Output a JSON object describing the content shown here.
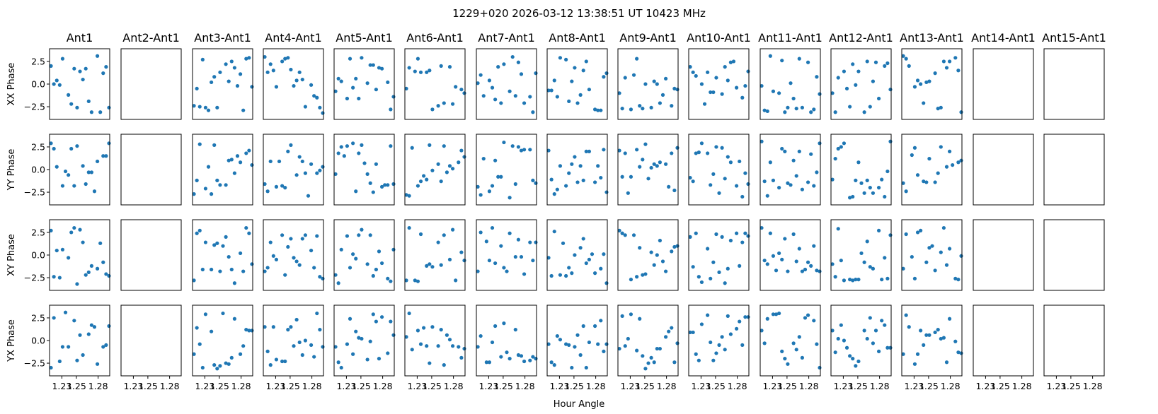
{
  "chart_data": {
    "type": "scatter",
    "title": "1229+020  2026-03-12 13:38:51 UT  10423 MHz",
    "xlabel": "Hour Angle",
    "xlim": [
      1.213,
      1.296
    ],
    "ylim": [
      -3.9,
      3.9
    ],
    "xticks": [
      1.23,
      1.25,
      1.28
    ],
    "xtick_labels": [
      "1.23",
      "1.25",
      "1.28"
    ],
    "yticks": [
      2.5,
      0.0,
      -2.5
    ],
    "ytick_labels": [
      "2.5",
      "0.0",
      "−2.5"
    ],
    "marker_color": "#1f77b4",
    "grid": false,
    "columns": [
      "Ant1",
      "Ant2-Ant1",
      "Ant3-Ant1",
      "Ant4-Ant1",
      "Ant5-Ant1",
      "Ant6-Ant1",
      "Ant7-Ant1",
      "Ant8-Ant1",
      "Ant9-Ant1",
      "Ant10-Ant1",
      "Ant11-Ant1",
      "Ant12-Ant1",
      "Ant13-Ant1",
      "Ant14-Ant1",
      "Ant15-Ant1"
    ],
    "rows": [
      "XX Phase",
      "YY Phase",
      "XY Phase",
      "YX Phase"
    ],
    "empty_columns": [
      "Ant2-Ant1",
      "Ant14-Ant1",
      "Ant15-Ant1"
    ],
    "hour_angle": [
      1.215,
      1.219,
      1.223,
      1.227,
      1.231,
      1.235,
      1.239,
      1.243,
      1.247,
      1.251,
      1.255,
      1.259,
      1.263,
      1.267,
      1.271,
      1.275,
      1.279,
      1.283,
      1.287,
      1.291,
      1.295
    ],
    "phases": {
      "XX Phase": {
        "Ant1": [
          2.0,
          0.0,
          0.4,
          -0.1,
          2.8,
          -1.2,
          -2.2,
          1.7,
          -2.6,
          1.4,
          0.5,
          1.7,
          -1.9,
          -3.1,
          3.1,
          -3.1,
          1.2,
          1.9,
          -2.6
        ],
        "Ant3-Ant1": [
          -2.4,
          -0.5,
          -2.5,
          2.7,
          -2.6,
          -2.9,
          0.2,
          0.8,
          -2.6,
          1.3,
          2.2,
          0.3,
          2.5,
          1.8,
          -0.2,
          1.1,
          -2.9,
          2.8,
          2.9,
          -0.3
        ],
        "Ant4-Ant1": [
          3.0,
          1.3,
          2.2,
          1.5,
          -0.3,
          2.5,
          2.8,
          2.9,
          1.6,
          -0.2,
          0.4,
          1.3,
          0.5,
          -2.5,
          -0.1,
          -1.3,
          -1.5,
          -2.6,
          -3.2
        ],
        "Ant5-Ant1": [
          -0.8,
          0.6,
          0.3,
          -1.6,
          2.8,
          -0.4,
          0.6,
          -1.6,
          2.9,
          0.1,
          2.1,
          2.1,
          -0.6,
          1.8,
          1.7,
          0.2,
          -2.8,
          -1.4
        ],
        "Ant6-Ant1": [
          -0.5,
          1.8,
          1.4,
          2.8,
          1.3,
          1.3,
          1.5,
          -2.8,
          -2.4,
          2.0,
          -2.1,
          1.9,
          -2.2,
          -0.3,
          -0.6,
          -1.0
        ],
        "Ant7-Ant1": [
          0.1,
          1.0,
          -1.3,
          0.4,
          -0.4,
          -1.7,
          1.9,
          -2.1,
          2.2,
          -0.8,
          3.0,
          -1.3,
          2.4,
          1.1,
          -2.1,
          -1.4,
          -3.1,
          1.2
        ],
        "Ant8-Ant1": [
          -0.7,
          -0.7,
          0.4,
          -1.4,
          2.9,
          2.7,
          -1.9,
          0.3,
          1.8,
          -2.1,
          -1.2,
          1.5,
          2.5,
          -0.6,
          -2.8,
          -2.9,
          -2.9,
          0.8,
          1.2
        ],
        "Ant9-Ant1": [
          -1.0,
          -2.7,
          0.7,
          -2.8,
          1.0,
          2.8,
          -2.4,
          -2.7,
          0.0,
          -2.6,
          0.3,
          0.0,
          -2.1,
          -1.2,
          0.6,
          -2.4,
          -0.5,
          -0.6
        ],
        "Ant10-Ant1": [
          1.9,
          1.3,
          0.9,
          0.0,
          -2.2,
          1.3,
          -0.9,
          -0.9,
          0.7,
          -1.1,
          1.9,
          0.4,
          2.4,
          2.5,
          -0.4,
          -1.5,
          -0.2,
          1.4
        ],
        "Ant11-Ant1": [
          -0.2,
          -2.9,
          -3.0,
          3.1,
          -0.8,
          -1.0,
          2.6,
          -3.1,
          -2.6,
          0.1,
          -1.6,
          -2.7,
          2.8,
          -2.6,
          2.4,
          -3.1,
          -2.8,
          0.8,
          -1.1
        ],
        "Ant12-Ant1": [
          -1.0,
          -3.1,
          0.7,
          1.4,
          -0.5,
          -2.5,
          2.2,
          -0.1,
          1.4,
          -3.1,
          2.5,
          -2.5,
          0.3,
          2.4,
          -1.6,
          2.0,
          2.3,
          -0.6
        ],
        "Ant13-Ant1": [
          3.1,
          2.8,
          2.0,
          -0.3,
          0.4,
          0.0,
          -2.1,
          0.2,
          0.3,
          1.2,
          -2.7,
          -2.6,
          2.5,
          1.8,
          2.5,
          2.9,
          1.5,
          -3.1
        ]
      },
      "YY Phase": {
        "Ant1": [
          2.9,
          2.3,
          0.3,
          -1.8,
          -0.2,
          -0.6,
          2.3,
          -1.8,
          2.6,
          0.4,
          -1.6,
          -0.3,
          -0.3,
          -2.4,
          0.9,
          1.5,
          1.5,
          2.9
        ],
        "Ant3-Ant1": [
          -2.7,
          -1.2,
          2.8,
          -2.1,
          0.3,
          -2.7,
          2.7,
          -1.2,
          -1.7,
          -1.7,
          1.0,
          1.1,
          -0.4,
          1.5,
          0.8,
          1.8,
          2.1,
          0.5
        ],
        "Ant4-Ant1": [
          -1.6,
          -2.4,
          0.9,
          -1.9,
          0.9,
          -1.8,
          -2.0,
          2.0,
          2.7,
          -0.6,
          1.4,
          0.9,
          -0.4,
          -2.9,
          0.6,
          -0.4,
          -0.1,
          0.3
        ],
        "Ant5-Ant1": [
          -0.5,
          1.8,
          2.5,
          1.5,
          2.6,
          2.9,
          -2.4,
          1.8,
          2.7,
          0.7,
          -0.5,
          -1.5,
          -2.5,
          0.6,
          -1.9,
          -1.7,
          -1.7,
          2.6,
          -1.6
        ],
        "Ant6-Ant1": [
          -2.8,
          -2.9,
          2.4,
          -1.8,
          -1.3,
          -0.7,
          -1.1,
          2.7,
          -0.1,
          0.6,
          -1.3,
          2.6,
          -0.3,
          0.4,
          0.1,
          0.8,
          2.1,
          1.4
        ],
        "Ant7-Ant1": [
          -1.9,
          -2.8,
          1.2,
          -2.4,
          -1.8,
          1.0,
          -0.8,
          -0.8,
          3.0,
          -3.1,
          2.6,
          -1.6,
          2.5,
          2.1,
          2.2,
          2.2,
          -1.2,
          -1.5
        ],
        "Ant8-Ant1": [
          2.1,
          -1.1,
          -2.7,
          -2.2,
          0.4,
          -1.8,
          -0.4,
          0.6,
          1.4,
          -1.4,
          0.4,
          -1.2,
          2.0,
          2.0,
          -1.4,
          0.4,
          -0.9,
          2.2,
          -2.5
        ],
        "Ant9-Ant1": [
          2.1,
          -0.8,
          1.8,
          -2.6,
          -0.8,
          2.2,
          0.3,
          1.1,
          2.8,
          -1.0,
          0.2,
          0.6,
          0.4,
          0.8,
          0.6,
          -1.9,
          1.8,
          -2.3,
          2.4
        ],
        "Ant10-Ant1": [
          -0.9,
          -1.3,
          1.8,
          1.9,
          2.9,
          1.8,
          -1.7,
          -0.5,
          2.5,
          -2.6,
          2.4,
          -1.0,
          1.4,
          0.8,
          -1.8,
          0.9,
          -3.0,
          -0.4,
          -1.6
        ],
        "Ant11-Ant1": [
          3.1,
          -1.3,
          -2.9,
          0.8,
          -1.2,
          -2.0,
          2.3,
          2.0,
          -1.5,
          -1.7,
          1.0,
          -0.7,
          2.0,
          -2.2,
          -1.4,
          1.7,
          -1.8,
          -0.3,
          2.9
        ],
        "Ant12-Ant1": [
          -1.1,
          1.2,
          2.3,
          2.5,
          2.9,
          -3.1,
          -3.0,
          -1.2,
          0.8,
          -1.5,
          -2.6,
          -1.2,
          -2.0,
          -2.6,
          -2.0,
          -1.1,
          -3.0,
          -0.2,
          3.1
        ],
        "Ant13-Ant1": [
          -1.5,
          -2.4,
          1.6,
          2.4,
          -0.6,
          -1.3,
          -1.4,
          1.2,
          -1.4,
          -0.4,
          2.5,
          0.3,
          2.0,
          0.5,
          0.8,
          1.0
        ]
      },
      "XY Phase": {
        "Ant1": [
          2.7,
          -2.4,
          0.5,
          -2.5,
          0.6,
          -0.3,
          2.5,
          3.0,
          -3.2,
          2.8,
          1.4,
          -2.2,
          -1.9,
          -1.2,
          -1.5,
          1.3,
          -0.8,
          -2.1,
          -2.3
        ],
        "Ant3-Ant1": [
          -2.8,
          2.4,
          2.7,
          -1.6,
          1.4,
          -1.6,
          1.1,
          1.3,
          -1.8,
          1.0,
          2.0,
          -0.2,
          -1.6,
          -3.1,
          0.2,
          -1.8,
          3.0,
          2.4,
          -1.0
        ],
        "Ant4-Ant1": [
          -1.8,
          -1.4,
          1.4,
          -0.1,
          -0.5,
          2.2,
          -2.2,
          0.9,
          1.8,
          -0.3,
          -0.7,
          -1.1,
          1.8,
          2.2,
          0.5,
          -1.4,
          2.1,
          -2.4,
          -2.6
        ],
        "Ant5-Ant1": [
          -2.2,
          -3.1,
          0.6,
          2.1,
          -1.4,
          0.1,
          -0.4,
          2.2,
          2.8,
          -1.0,
          2.2,
          -2.3,
          -1.6,
          0.4,
          -0.9,
          -2.6,
          -2.9,
          0.6
        ],
        "Ant6-Ant1": [
          -2.8,
          3.0,
          -2.8,
          -2.9,
          2.3,
          -1.2,
          -1.0,
          -1.3,
          1.4,
          -1.1,
          2.2,
          -0.5,
          2.8,
          -2.8,
          0.3,
          -0.6
        ],
        "Ant7-Ant1": [
          -1.8,
          2.5,
          1.5,
          -0.6,
          3.0,
          -0.9,
          1.0,
          -1.4,
          -1.8,
          2.4,
          -0.2,
          1.7,
          -0.2,
          -2.1,
          1.4,
          -0.6,
          1.4
        ],
        "Ant8-Ant1": [
          -0.3,
          -2.3,
          2.6,
          -2.2,
          1.3,
          -2.3,
          -1.4,
          -2.0,
          0.0,
          0.8,
          1.8,
          -0.9,
          -0.5,
          0.1,
          -2.0,
          -1.5,
          0.1,
          -3.1
        ],
        "Ant9-Ant1": [
          2.7,
          2.4,
          2.2,
          -2.7,
          2.2,
          -2.4,
          0.8,
          -2.2,
          -2.1,
          0.3,
          -1.1,
          0.0,
          1.6,
          -0.7,
          -1.8,
          0.4,
          0.9,
          1.0
        ],
        "Ant10-Ant1": [
          2.0,
          -1.3,
          2.4,
          -2.4,
          -3.0,
          0.7,
          -2.6,
          -0.8,
          2.3,
          -1.9,
          2.0,
          -3.1,
          -1.5,
          1.6,
          2.4,
          -1.2,
          1.4,
          2.4,
          2.1
        ],
        "Ant11-Ant1": [
          3.0,
          -0.6,
          -1.0,
          2.4,
          -0.1,
          -1.7,
          0.2,
          -0.5,
          1.8,
          -1.8,
          2.3,
          -0.7,
          0.7,
          -1.8,
          -1.6,
          -0.8,
          -1.2,
          1.0,
          -1.7,
          -1.8
        ],
        "Ant12-Ant1": [
          -1.0,
          -2.4,
          2.9,
          -0.6,
          -2.8,
          -2.7,
          -2.8,
          -2.7,
          -2.7,
          0.2,
          -0.8,
          1.5,
          -1.3,
          -1.5,
          2.7,
          -2.7,
          -0.3,
          -2.6,
          2.2
        ],
        "Ant13-Ant1": [
          -1.5,
          2.3,
          -0.2,
          -2.6,
          2.5,
          2.7,
          -0.8,
          0.8,
          1.0,
          -1.7,
          0.3,
          3.0,
          -1.1,
          0.7,
          -2.6,
          -2.7,
          -0.1
        ]
      },
      "YX Phase": {
        "Ant1": [
          -3.0,
          2.5,
          -2.3,
          -0.7,
          3.1,
          -0.7,
          2.2,
          -2.2,
          0.6,
          -1.6,
          0.7,
          1.7,
          1.5,
          -2.6,
          -0.7,
          -0.5,
          1.6
        ],
        "Ant3-Ant1": [
          -1.5,
          1.4,
          -0.4,
          -3.0,
          2.9,
          1.0,
          -2.7,
          -3.1,
          -2.8,
          3.0,
          -2.5,
          -2.6,
          -1.9,
          2.4,
          -1.5,
          -0.6,
          1.2,
          1.1,
          1.1
        ],
        "Ant4-Ant1": [
          1.5,
          -1.2,
          -2.7,
          1.5,
          -2.1,
          -2.3,
          -2.3,
          1.2,
          1.5,
          -0.6,
          2.3,
          -0.2,
          -1.6,
          0.0,
          -0.5,
          -1.8,
          3.0,
          1.2,
          -0.7
        ],
        "Ant5-Ant1": [
          -0.7,
          -2.4,
          -3.0,
          -0.4,
          2.4,
          -1.5,
          1.0,
          0.3,
          0.2,
          -2.1,
          -0.1,
          2.9,
          2.1,
          -2.0,
          2.6,
          -1.4,
          2.1,
          0.6
        ],
        "Ant6-Ant1": [
          0.4,
          3.0,
          -1.0,
          1.1,
          -0.4,
          1.4,
          -0.6,
          -2.5,
          1.5,
          -0.6,
          1.2,
          -2.7,
          0.6,
          0.1,
          -0.6,
          -0.7,
          -1.9,
          -0.9
        ],
        "Ant7-Ant1": [
          -0.7,
          0.5,
          -2.4,
          -2.4,
          -0.2,
          1.6,
          -1.8,
          1.9,
          -1.3,
          -2.0,
          1.2,
          -1.6,
          -1.7,
          -2.3,
          -2.2,
          -1.8,
          -2.0
        ],
        "Ant8-Ant1": [
          -0.4,
          -2.4,
          -2.7,
          0.5,
          0.1,
          -0.4,
          -0.5,
          -3.0,
          -0.7,
          0.6,
          -1.6,
          1.6,
          -3.0,
          -0.2,
          1.6,
          -0.4,
          2.2,
          -1.2,
          -0.4
        ],
        "Ant9-Ant1": [
          -0.9,
          2.7,
          -0.6,
          0.2,
          2.9,
          -1.1,
          2.4,
          -1.7,
          -3.1,
          -2.5,
          -1.9,
          -2.4,
          -0.9,
          -0.9,
          0.4,
          1.0,
          1.4,
          -2.4,
          -0.3
        ],
        "Ant10-Ant1": [
          0.9,
          0.9,
          -1.5,
          -2.2,
          1.8,
          2.8,
          -0.2,
          -2.2,
          -1.4,
          -0.5,
          0.4,
          -1.0,
          2.7,
          0.7,
          1.3,
          2.1,
          -0.5,
          2.6,
          2.6
        ],
        "Ant11-Ant1": [
          1.1,
          -0.3,
          2.4,
          2.9,
          2.9,
          3.0,
          -1.2,
          -2.0,
          -2.6,
          -0.3,
          -1.0,
          0.4,
          -1.9,
          2.5,
          2.8,
          2.2,
          -0.4,
          -3.0
        ],
        "Ant12-Ant1": [
          1.1,
          -1.3,
          0.2,
          1.7,
          0.0,
          -0.8,
          -1.7,
          -2.0,
          -2.8,
          -2.3,
          1.1,
          0.2,
          2.5,
          -0.3,
          1.1,
          -1.2,
          2.2,
          1.7,
          -0.8,
          -0.8
        ],
        "Ant13-Ant1": [
          -1.5,
          2.8,
          1.5,
          -2.6,
          -1.5,
          1.1,
          -0.5,
          0.6,
          0.6,
          0.9,
          1.2,
          0.2,
          0.3,
          -2.4,
          2.4,
          -0.1,
          -1.3,
          -1.4
        ]
      }
    }
  }
}
